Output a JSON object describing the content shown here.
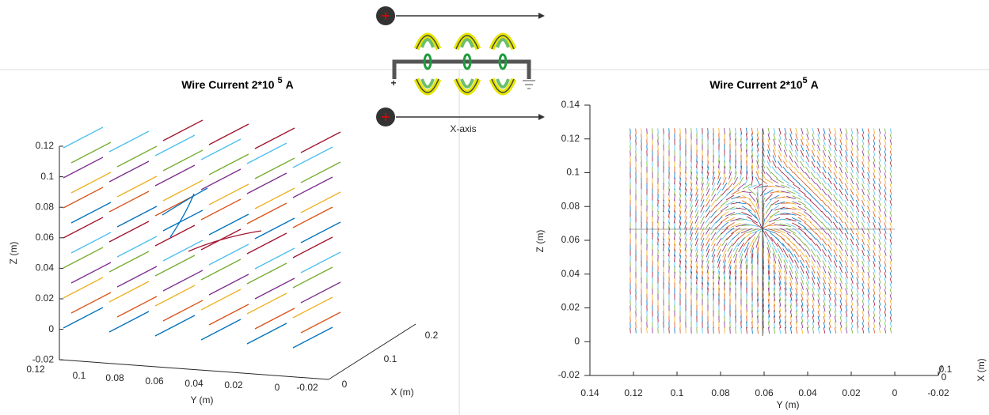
{
  "diagram": {
    "terminal": "+",
    "label": "X-axis"
  },
  "left_plot": {
    "title": {
      "text": "Wire Current 2*10",
      "exponent": "5",
      "unit": "A"
    },
    "z_label": "Z (m)",
    "y_label": "Y (m)",
    "x_label": "X (m)",
    "z_ticks": [
      "0.12",
      "0.1",
      "0.08",
      "0.06",
      "0.04",
      "0.02",
      "0",
      "-0.02"
    ],
    "y_ticks": [
      "0.12",
      "0.1",
      "0.08",
      "0.06",
      "0.04",
      "0.02",
      "0",
      "-0.02"
    ],
    "x_ticks": [
      "0",
      "0.1",
      "0.2"
    ]
  },
  "right_plot": {
    "title": {
      "text": "Wire Current 2*10",
      "exponent": "5",
      "unit": "A"
    },
    "z_label": "Z (m)",
    "y_label": "Y (m)",
    "x_label": "X (m)",
    "z_ticks": [
      "0.14",
      "0.12",
      "0.1",
      "0.08",
      "0.06",
      "0.04",
      "0.02",
      "0",
      "-0.02"
    ],
    "y_ticks": [
      "0.14",
      "0.12",
      "0.1",
      "0.08",
      "0.06",
      "0.04",
      "0.02",
      "0",
      "-0.02"
    ],
    "x_ticks": [
      "0",
      "0.1"
    ]
  }
}
